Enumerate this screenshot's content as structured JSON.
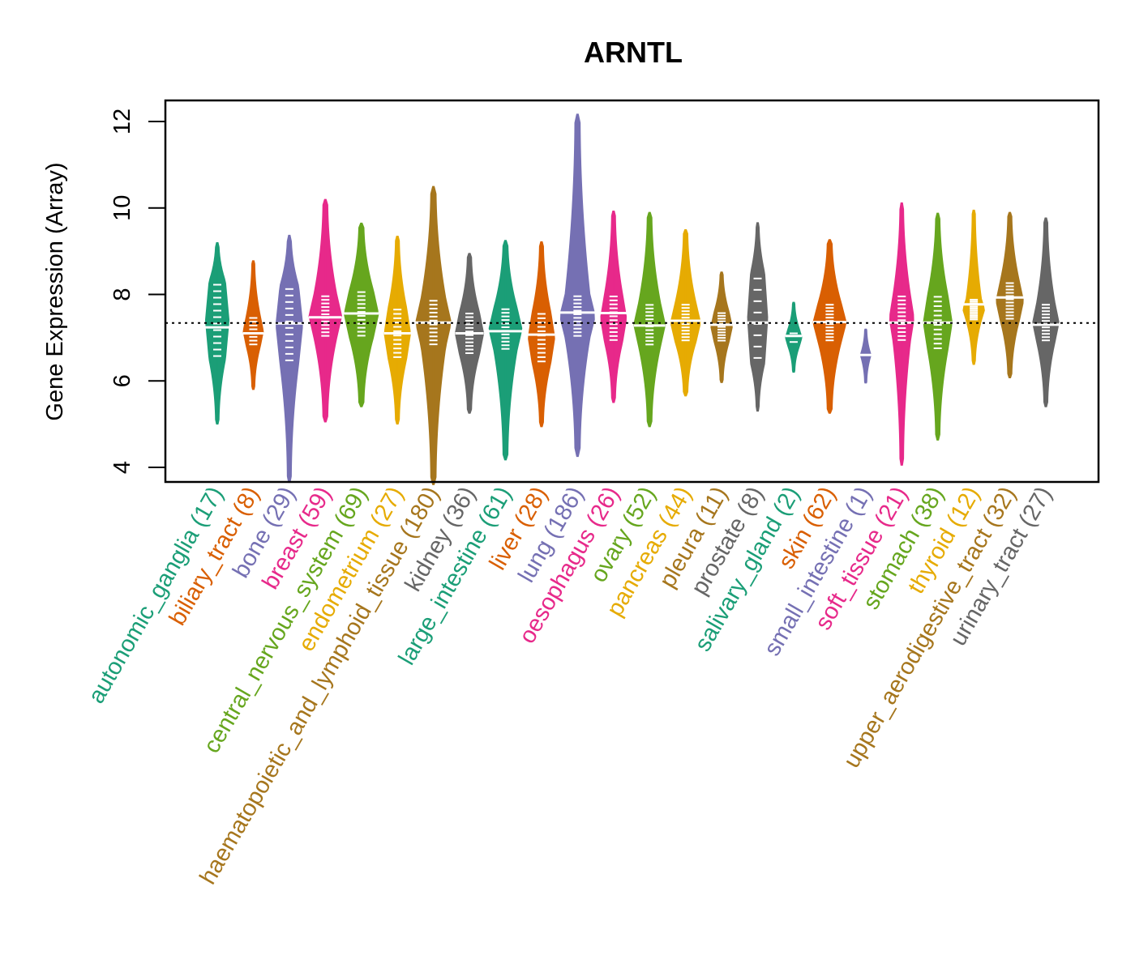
{
  "chart_data": {
    "type": "violin",
    "title": "ARNTL",
    "xlabel": "",
    "ylabel": "Gene Expression (Array)",
    "ylim": [
      3.6,
      12.5
    ],
    "yticks": [
      4,
      6,
      8,
      10,
      12
    ],
    "reference_line": {
      "value": 7.34,
      "style": "dotted"
    },
    "grid": false,
    "palette": [
      "#1B9E77",
      "#D95F02",
      "#7570B3",
      "#E7298A",
      "#66A61E",
      "#E6AB02",
      "#A6761D",
      "#666666"
    ],
    "categories": [
      {
        "name": "autonomic_ganglia",
        "n": 17,
        "label": "autonomic_ganglia (17)",
        "min": 5.0,
        "max": 9.2,
        "median": 7.24,
        "q1": 6.5,
        "q3": 8.3
      },
      {
        "name": "biliary_tract",
        "n": 8,
        "label": "biliary_tract (8)",
        "min": 5.8,
        "max": 8.78,
        "median": 7.1,
        "q1": 6.8,
        "q3": 7.5
      },
      {
        "name": "bone",
        "n": 29,
        "label": "bone (29)",
        "min": 3.65,
        "max": 9.37,
        "median": 7.33,
        "q1": 6.4,
        "q3": 8.2
      },
      {
        "name": "breast",
        "n": 59,
        "label": "breast (59)",
        "min": 5.05,
        "max": 10.2,
        "median": 7.47,
        "q1": 7.0,
        "q3": 8.0
      },
      {
        "name": "central_nervous_system",
        "n": 69,
        "label": "central_nervous_system (69)",
        "min": 5.4,
        "max": 9.65,
        "median": 7.56,
        "q1": 7.0,
        "q3": 8.1
      },
      {
        "name": "endometrium",
        "n": 27,
        "label": "endometrium (27)",
        "min": 5.0,
        "max": 9.35,
        "median": 7.1,
        "q1": 6.5,
        "q3": 7.7
      },
      {
        "name": "haematopoietic_and_lymphoid_tissue",
        "n": 180,
        "label": "haematopoietic_and_lymphoid_tissue (180)",
        "min": 3.6,
        "max": 10.5,
        "median": 7.35,
        "q1": 6.8,
        "q3": 7.9
      },
      {
        "name": "kidney",
        "n": 36,
        "label": "kidney (36)",
        "min": 5.25,
        "max": 8.95,
        "median": 7.1,
        "q1": 6.6,
        "q3": 7.6
      },
      {
        "name": "large_intestine",
        "n": 61,
        "label": "large_intestine (61)",
        "min": 4.17,
        "max": 9.25,
        "median": 7.15,
        "q1": 6.7,
        "q3": 7.7
      },
      {
        "name": "liver",
        "n": 28,
        "label": "liver (28)",
        "min": 4.94,
        "max": 9.22,
        "median": 7.07,
        "q1": 6.4,
        "q3": 7.6
      },
      {
        "name": "lung",
        "n": 186,
        "label": "lung (186)",
        "min": 4.25,
        "max": 12.17,
        "median": 7.58,
        "q1": 7.0,
        "q3": 8.0
      },
      {
        "name": "oesophagus",
        "n": 26,
        "label": "oesophagus (26)",
        "min": 5.5,
        "max": 9.93,
        "median": 7.57,
        "q1": 6.9,
        "q3": 8.0
      },
      {
        "name": "ovary",
        "n": 52,
        "label": "ovary (52)",
        "min": 4.94,
        "max": 9.9,
        "median": 7.28,
        "q1": 6.8,
        "q3": 7.8
      },
      {
        "name": "pancreas",
        "n": 44,
        "label": "pancreas (44)",
        "min": 5.65,
        "max": 9.5,
        "median": 7.39,
        "q1": 6.9,
        "q3": 7.8
      },
      {
        "name": "pleura",
        "n": 11,
        "label": "pleura (11)",
        "min": 5.96,
        "max": 8.52,
        "median": 7.3,
        "q1": 6.9,
        "q3": 7.6
      },
      {
        "name": "prostate",
        "n": 8,
        "label": "prostate (8)",
        "min": 5.3,
        "max": 9.66,
        "median": 7.35,
        "q1": 6.4,
        "q3": 8.5
      },
      {
        "name": "salivary_gland",
        "n": 2,
        "label": "salivary_gland (2)",
        "min": 6.2,
        "max": 7.82,
        "median": 7.04,
        "q1": 6.8,
        "q3": 7.2
      },
      {
        "name": "skin",
        "n": 62,
        "label": "skin (62)",
        "min": 5.25,
        "max": 9.27,
        "median": 7.36,
        "q1": 6.9,
        "q3": 7.8
      },
      {
        "name": "small_intestine",
        "n": 1,
        "label": "small_intestine (1)",
        "min": 5.95,
        "max": 7.2,
        "median": 6.6,
        "q1": 6.6,
        "q3": 6.6
      },
      {
        "name": "soft_tissue",
        "n": 21,
        "label": "soft_tissue (21)",
        "min": 4.05,
        "max": 10.12,
        "median": 7.35,
        "q1": 6.9,
        "q3": 8.0
      },
      {
        "name": "stomach",
        "n": 38,
        "label": "stomach (38)",
        "min": 4.63,
        "max": 9.88,
        "median": 7.35,
        "q1": 6.7,
        "q3": 8.0
      },
      {
        "name": "thyroid",
        "n": 12,
        "label": "thyroid (12)",
        "min": 6.38,
        "max": 9.95,
        "median": 7.77,
        "q1": 7.4,
        "q3": 7.9
      },
      {
        "name": "upper_aerodigestive_tract",
        "n": 32,
        "label": "upper_aerodigestive_tract (32)",
        "min": 6.07,
        "max": 9.9,
        "median": 7.93,
        "q1": 7.4,
        "q3": 8.3
      },
      {
        "name": "urinary_tract",
        "n": 27,
        "label": "urinary_tract (27)",
        "min": 5.4,
        "max": 9.77,
        "median": 7.3,
        "q1": 6.9,
        "q3": 7.8
      }
    ]
  }
}
